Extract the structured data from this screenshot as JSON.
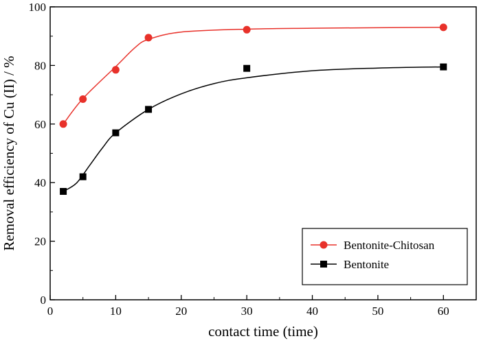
{
  "chart_data": {
    "type": "scatter",
    "xlabel": "contact time (time)",
    "ylabel": "Removal efficiency of Cu (II) / %",
    "xlim": [
      0,
      65
    ],
    "ylim": [
      0,
      100
    ],
    "xticks": [
      0,
      10,
      20,
      30,
      40,
      50,
      60
    ],
    "yticks": [
      0,
      20,
      40,
      60,
      80,
      100
    ],
    "xtick_labels": [
      "0",
      "10",
      "20",
      "30",
      "40",
      "50",
      "60"
    ],
    "ytick_labels": [
      "0",
      "20",
      "40",
      "60",
      "80",
      "100"
    ],
    "grid": false,
    "legend_position": "bottom-right",
    "series": [
      {
        "name": "Bentonite-Chitosan",
        "marker": "circle",
        "color": "#e8312a",
        "points": [
          [
            2,
            60
          ],
          [
            5,
            68.5
          ],
          [
            10,
            78.5
          ],
          [
            15,
            89.5
          ],
          [
            30,
            92.2
          ],
          [
            60,
            93
          ]
        ],
        "fit_curve": [
          [
            2,
            60
          ],
          [
            5,
            68.7
          ],
          [
            10,
            79.6
          ],
          [
            13,
            86.2
          ],
          [
            15,
            88.9
          ],
          [
            20,
            91.4
          ],
          [
            30,
            92.4
          ],
          [
            40,
            92.7
          ],
          [
            50,
            92.9
          ],
          [
            60,
            93
          ]
        ]
      },
      {
        "name": "Bentonite",
        "marker": "square",
        "color": "#000000",
        "points": [
          [
            2,
            37
          ],
          [
            5,
            42
          ],
          [
            10,
            57
          ],
          [
            15,
            65
          ],
          [
            30,
            79
          ],
          [
            60,
            79.5
          ]
        ],
        "fit_curve": [
          [
            2,
            37
          ],
          [
            4,
            39.8
          ],
          [
            6,
            45.8
          ],
          [
            8,
            51.9
          ],
          [
            10,
            57
          ],
          [
            15,
            65
          ],
          [
            20,
            70.3
          ],
          [
            25,
            73.8
          ],
          [
            30,
            75.8
          ],
          [
            40,
            78.2
          ],
          [
            50,
            79.1
          ],
          [
            60,
            79.5
          ]
        ]
      }
    ]
  }
}
